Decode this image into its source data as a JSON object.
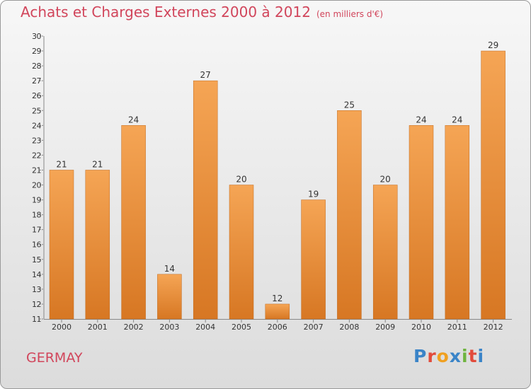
{
  "title": "Achats et Charges Externes 2000 à 2012",
  "unit": "(en milliers d'€)",
  "city": "GERMAY",
  "logo": {
    "text": "Proxiti",
    "letter_colors": [
      "#3a84c8",
      "#e24b3b",
      "#f0a020",
      "#3a84c8",
      "#6fb43f",
      "#e24b3b",
      "#3a84c8"
    ]
  },
  "colors": {
    "bar_light": "#f5a555",
    "bar_dark": "#d77723",
    "axis": "#888888",
    "text": "#333333",
    "accent": "#d1455b"
  },
  "chart_data": {
    "type": "bar",
    "categories": [
      "2000",
      "2001",
      "2002",
      "2003",
      "2004",
      "2005",
      "2006",
      "2007",
      "2008",
      "2009",
      "2010",
      "2011",
      "2012"
    ],
    "values": [
      21,
      21,
      24,
      14,
      27,
      20,
      12,
      19,
      25,
      20,
      24,
      24,
      29
    ],
    "ylim": [
      11,
      30
    ],
    "yticks": [
      11,
      12,
      13,
      14,
      15,
      16,
      17,
      18,
      19,
      20,
      21,
      22,
      23,
      24,
      25,
      26,
      27,
      28,
      29,
      30
    ],
    "data_labels": true,
    "grid": false,
    "title": "Achats et Charges Externes 2000 à 2012",
    "xlabel": "",
    "ylabel": ""
  }
}
